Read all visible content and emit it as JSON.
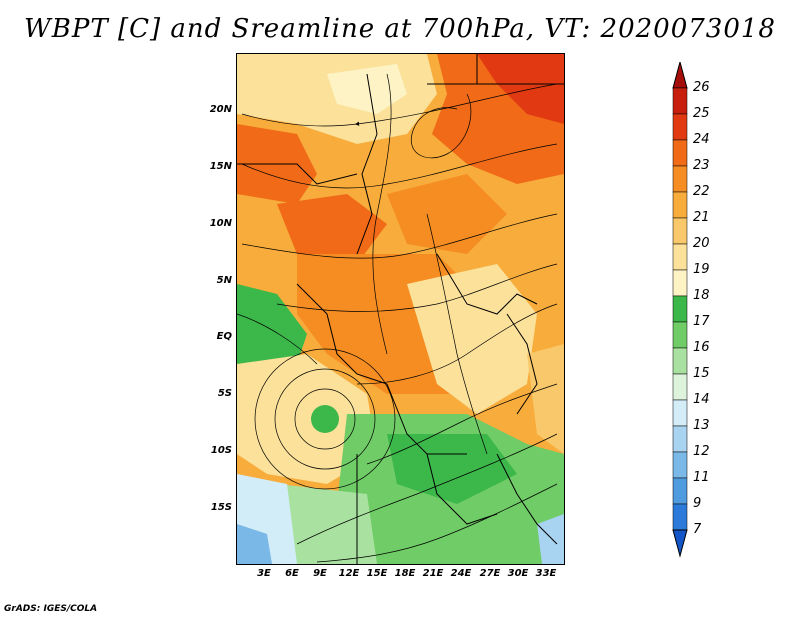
{
  "title": "WBPT [C] and Sreamline at 700hPa, VT: 2020073018",
  "credit": "GrADS: IGES/COLA",
  "map": {
    "lat_labels": [
      "20N",
      "15N",
      "10N",
      "5N",
      "EQ",
      "5S",
      "10S",
      "15S"
    ],
    "lon_labels": [
      "3E",
      "6E",
      "9E",
      "12E",
      "15E",
      "18E",
      "21E",
      "24E",
      "27E",
      "30E",
      "33E"
    ]
  },
  "colorbar": {
    "labels": [
      "26",
      "25",
      "24",
      "23",
      "22",
      "21",
      "20",
      "19",
      "18",
      "17",
      "16",
      "15",
      "14",
      "13",
      "12",
      "11",
      "9",
      "7"
    ],
    "colors": [
      "#a50f0b",
      "#c81e0e",
      "#e13a12",
      "#f06a18",
      "#f58d22",
      "#f7ac3c",
      "#f9c86a",
      "#fbe19a",
      "#fdf3c4",
      "#3cb84b",
      "#6fcc66",
      "#a9e2a0",
      "#def3dc",
      "#d2ecf8",
      "#a8d3f1",
      "#7ab8e8",
      "#4f9be0",
      "#2b79d8",
      "#1456c8"
    ]
  }
}
